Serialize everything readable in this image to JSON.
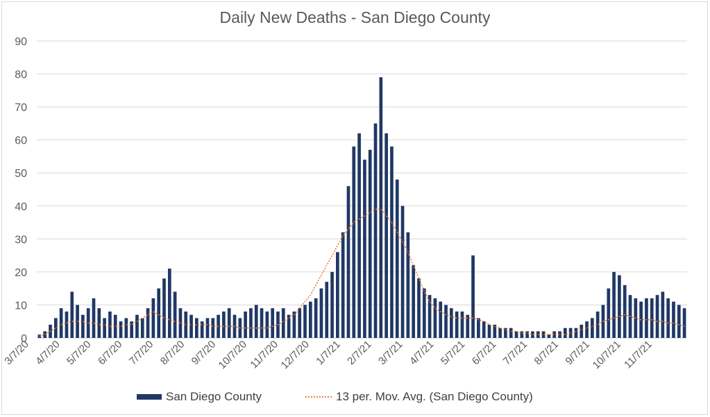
{
  "chart_data": {
    "type": "bar",
    "title": "Daily New Deaths - San Diego County",
    "xlabel": "",
    "ylabel": "",
    "ylim": [
      0,
      90
    ],
    "yticks": [
      "0",
      "10",
      "20",
      "30",
      "40",
      "50",
      "60",
      "70",
      "80",
      "90"
    ],
    "x_tick_labels": [
      "3/7/20",
      "4/7/20",
      "5/7/20",
      "6/7/20",
      "7/7/20",
      "8/7/20",
      "9/7/20",
      "10/7/20",
      "11/7/20",
      "12/7/20",
      "1/7/21",
      "2/7/21",
      "3/7/21",
      "4/7/21",
      "5/7/21",
      "6/7/21",
      "7/7/21",
      "8/7/21",
      "9/7/21",
      "10/7/21",
      "11/7/21"
    ],
    "grid": true,
    "legend_position": "bottom",
    "colors": {
      "bars": "#203864",
      "moving_average": "#ed7d31",
      "grid": "#d9d9d9"
    },
    "series": [
      {
        "name": "San Diego County",
        "type": "bar",
        "weekly_values": [
          1,
          2,
          4,
          6,
          9,
          8,
          14,
          10,
          7,
          9,
          12,
          9,
          6,
          8,
          7,
          5,
          6,
          5,
          7,
          6,
          9,
          12,
          15,
          18,
          21,
          14,
          9,
          8,
          7,
          6,
          5,
          6,
          6,
          7,
          8,
          9,
          7,
          6,
          8,
          9,
          10,
          9,
          8,
          9,
          8,
          9,
          7,
          8,
          9,
          10,
          11,
          12,
          15,
          17,
          20,
          26,
          32,
          46,
          58,
          62,
          54,
          57,
          65,
          79,
          62,
          58,
          48,
          40,
          32,
          22,
          18,
          15,
          13,
          12,
          11,
          10,
          9,
          8,
          8,
          7,
          25,
          6,
          5,
          4,
          4,
          3,
          3,
          3,
          2,
          2,
          2,
          2,
          2,
          2,
          1,
          2,
          2,
          3,
          3,
          3,
          4,
          5,
          6,
          8,
          10,
          15,
          20,
          19,
          16,
          13,
          12,
          11,
          12,
          12,
          13,
          14,
          12,
          11,
          10,
          9
        ]
      },
      {
        "name": "13 per. Mov. Avg. (San Diego County)",
        "type": "line",
        "style": "dotted",
        "weekly_values": [
          0.5,
          1,
          2,
          3,
          4,
          4.5,
          5,
          5,
          5,
          4.5,
          4.5,
          4,
          4,
          3.5,
          3.5,
          3.5,
          4,
          4,
          5,
          6,
          7,
          8,
          7,
          6,
          5.5,
          5,
          4.5,
          4,
          4,
          4,
          4,
          4,
          3.5,
          3.5,
          3.5,
          3.5,
          3.5,
          3,
          3,
          3,
          3,
          3,
          3,
          3.5,
          4,
          5,
          6,
          7,
          9,
          11,
          13,
          16,
          19,
          22,
          25,
          28,
          31,
          33,
          35,
          36,
          37,
          38,
          39,
          39,
          37,
          35,
          32,
          29,
          26,
          22,
          18,
          14,
          11,
          9,
          8,
          7,
          6.5,
          6,
          6,
          6,
          6,
          5.5,
          5,
          4,
          3.5,
          3,
          2.5,
          2,
          2,
          1.5,
          1.5,
          1,
          1,
          1,
          1,
          1,
          1,
          1,
          1.5,
          2,
          2.5,
          3,
          3.5,
          4,
          5,
          5.5,
          6,
          6.5,
          7,
          6.5,
          6,
          5.5,
          5.5,
          5.5,
          5,
          5,
          4.5,
          4.5,
          4,
          3.5
        ]
      }
    ]
  }
}
